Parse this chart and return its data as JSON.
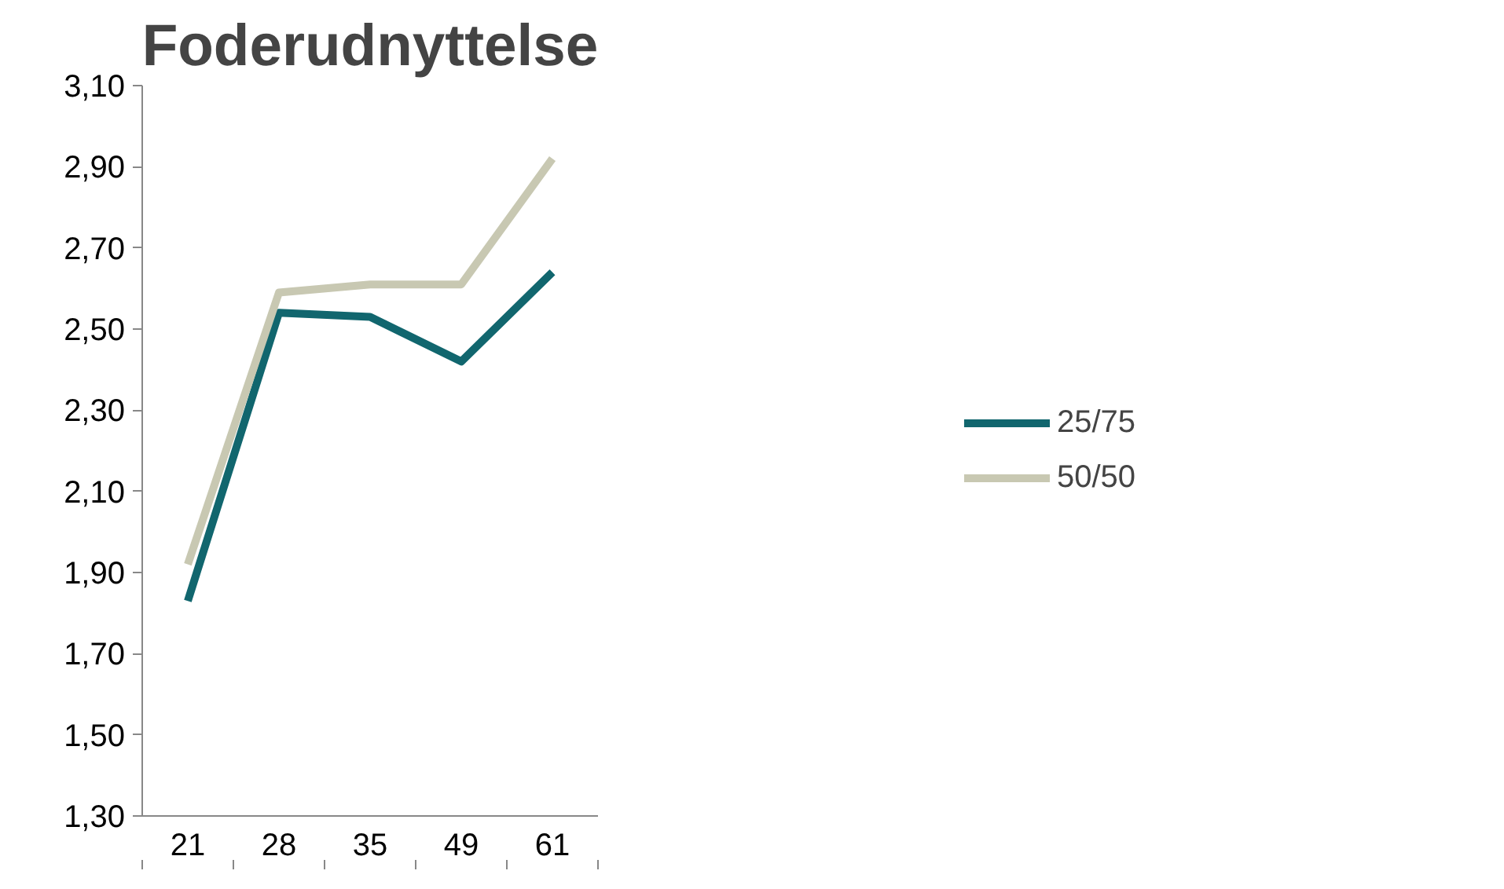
{
  "chart_data": {
    "type": "line",
    "title": "Foderudnyttelse",
    "categories": [
      "21",
      "28",
      "35",
      "49",
      "61"
    ],
    "series": [
      {
        "name": "25/75",
        "color": "#11666e",
        "values": [
          1.83,
          2.54,
          2.53,
          2.42,
          2.64
        ]
      },
      {
        "name": "50/50",
        "color": "#c8c8b2",
        "values": [
          1.92,
          2.59,
          2.61,
          2.61,
          2.92
        ]
      }
    ],
    "ylim": [
      1.3,
      3.1
    ],
    "yticks": [
      {
        "value": 1.3,
        "label": "1,30"
      },
      {
        "value": 1.5,
        "label": "1,50"
      },
      {
        "value": 1.7,
        "label": "1,70"
      },
      {
        "value": 1.9,
        "label": "1,90"
      },
      {
        "value": 2.1,
        "label": "2,10"
      },
      {
        "value": 2.3,
        "label": "2,30"
      },
      {
        "value": 2.5,
        "label": "2,50"
      },
      {
        "value": 2.7,
        "label": "2,70"
      },
      {
        "value": 2.9,
        "label": "2,90"
      },
      {
        "value": 3.1,
        "label": "3,10"
      }
    ],
    "grid": false,
    "legend": "right",
    "marker": "none",
    "line_style": "solid"
  }
}
